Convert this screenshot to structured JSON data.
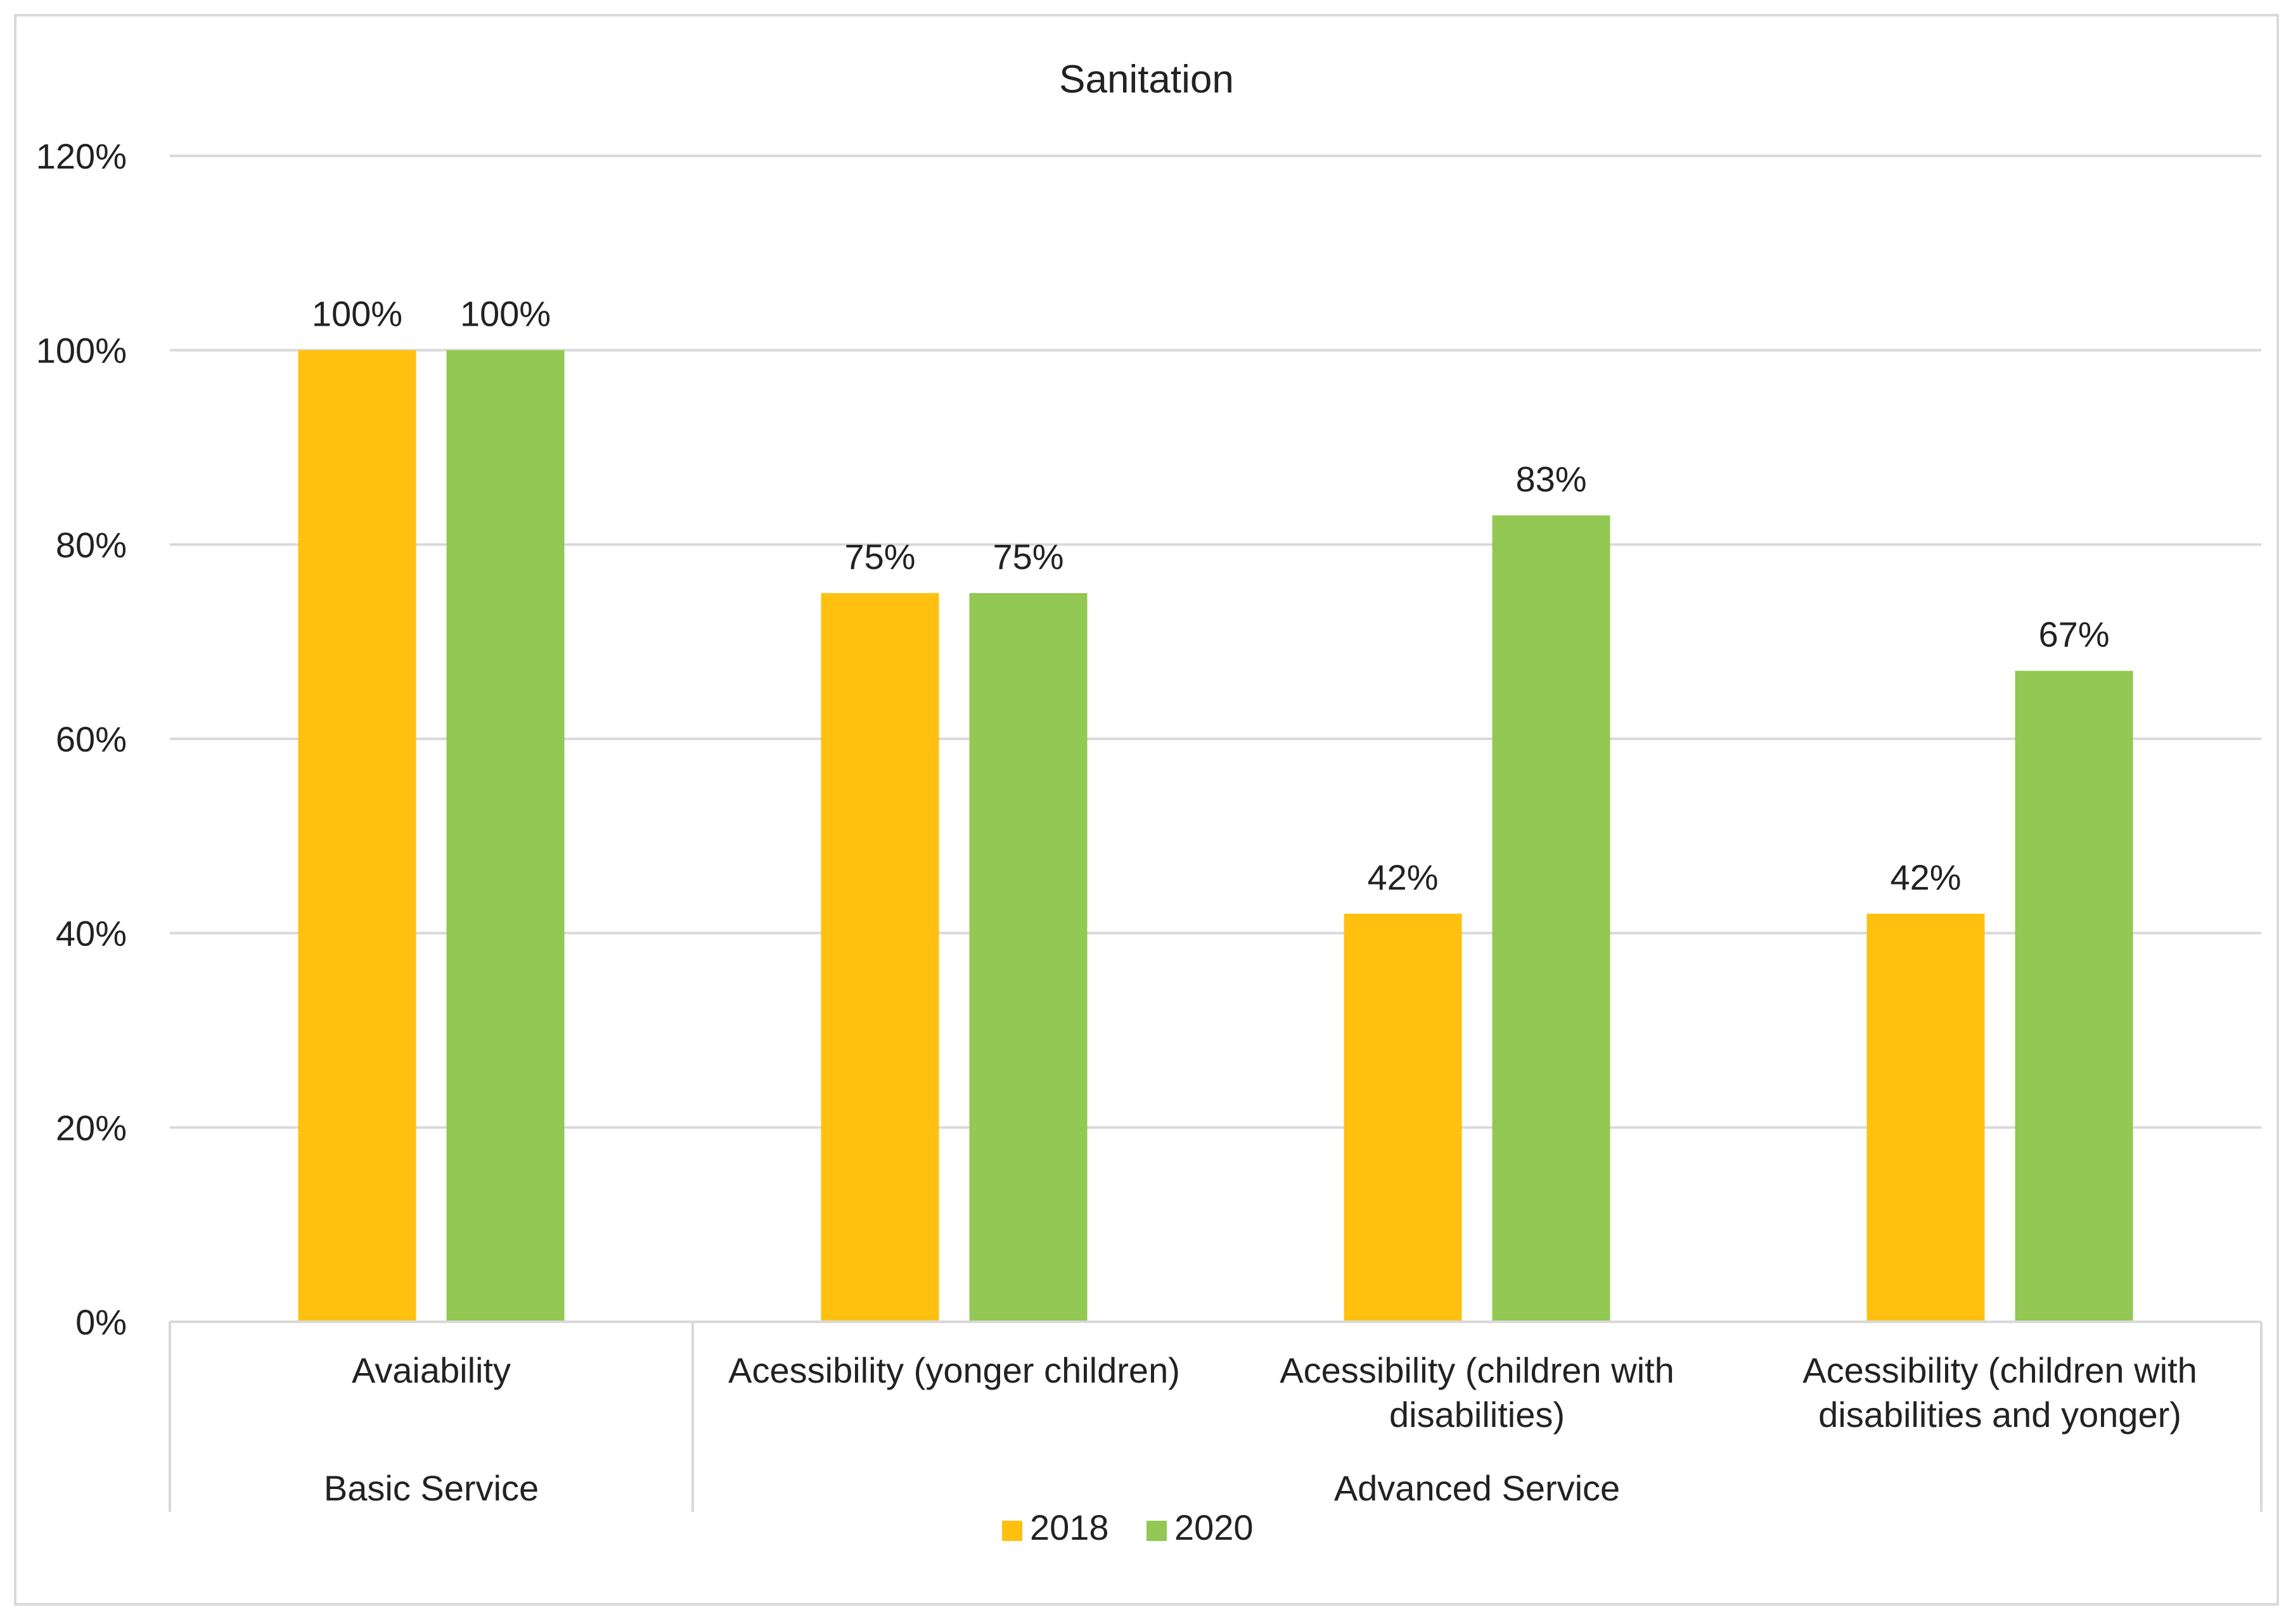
{
  "chart_data": {
    "type": "bar",
    "title": "Sanitation",
    "categories": [
      "Avaiability",
      "Acessibility (yonger children)",
      "Acessibility (children with disabilities)",
      "Acessibility (children with disabilities and yonger)"
    ],
    "category_lines": [
      [
        "Avaiability"
      ],
      [
        "Acessibility (yonger children)"
      ],
      [
        "Acessibility (children with",
        "disabilities)"
      ],
      [
        "Acessibility (children with",
        "disabilities and yonger)"
      ]
    ],
    "groups": [
      {
        "label": "Basic Service",
        "categories": [
          0
        ]
      },
      {
        "label": "Advanced Service",
        "categories": [
          1,
          2,
          3
        ]
      }
    ],
    "series": [
      {
        "name": "2018",
        "color": "#FFC010",
        "values": [
          100,
          75,
          42,
          42
        ]
      },
      {
        "name": "2020",
        "color": "#92C853",
        "values": [
          100,
          75,
          83,
          67
        ]
      }
    ],
    "data_labels": [
      [
        "100%",
        "75%",
        "42%",
        "42%"
      ],
      [
        "100%",
        "75%",
        "83%",
        "67%"
      ]
    ],
    "y_ticks": [
      "0%",
      "20%",
      "40%",
      "60%",
      "80%",
      "100%",
      "120%"
    ],
    "ylim": [
      0,
      120
    ],
    "y_unit": "%",
    "grid": true,
    "legend_position": "bottom-center",
    "xlabel": "",
    "ylabel": ""
  }
}
